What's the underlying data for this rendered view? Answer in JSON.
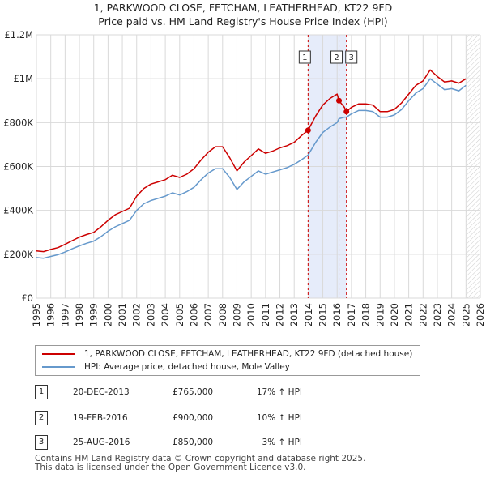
{
  "title": {
    "line1": "1, PARKWOOD CLOSE, FETCHAM, LEATHERHEAD, KT22 9FD",
    "line2": "Price paid vs. HM Land Registry's House Price Index (HPI)"
  },
  "colors": {
    "property": "#cc0000",
    "hpi": "#6699cc",
    "shade": "#e6ecfa",
    "grid": "#d9d9d9",
    "marker_line": "#cc0000"
  },
  "chart_data": {
    "type": "line",
    "title": "1, PARKWOOD CLOSE, FETCHAM, LEATHERHEAD, KT22 9FD",
    "subtitle": "Price paid vs. HM Land Registry's House Price Index (HPI)",
    "xlabel": "",
    "ylabel": "",
    "xlim": [
      1995,
      2026
    ],
    "ylim": [
      0,
      1200000
    ],
    "x_ticks": [
      1995,
      1996,
      1997,
      1998,
      1999,
      2000,
      2001,
      2002,
      2003,
      2004,
      2005,
      2006,
      2007,
      2008,
      2009,
      2010,
      2011,
      2012,
      2013,
      2014,
      2015,
      2016,
      2017,
      2018,
      2019,
      2020,
      2021,
      2022,
      2023,
      2024,
      2025,
      2026
    ],
    "y_ticks": [
      {
        "value": 0,
        "label": "£0"
      },
      {
        "value": 200000,
        "label": "£200K"
      },
      {
        "value": 400000,
        "label": "£400K"
      },
      {
        "value": 600000,
        "label": "£600K"
      },
      {
        "value": 800000,
        "label": "£800K"
      },
      {
        "value": 1000000,
        "label": "£1M"
      },
      {
        "value": 1200000,
        "label": "£1.2M"
      }
    ],
    "grid": true,
    "shaded_range": [
      2013.97,
      2016.65
    ],
    "future_hatch_from": 2025.0,
    "series": [
      {
        "name": "1, PARKWOOD CLOSE, FETCHAM, LEATHERHEAD, KT22 9FD (detached house)",
        "color_key": "property",
        "points": [
          [
            1995.0,
            215000
          ],
          [
            1995.5,
            212000
          ],
          [
            1996.0,
            222000
          ],
          [
            1996.5,
            230000
          ],
          [
            1997.0,
            245000
          ],
          [
            1997.5,
            262000
          ],
          [
            1998.0,
            278000
          ],
          [
            1998.5,
            290000
          ],
          [
            1999.0,
            300000
          ],
          [
            1999.5,
            325000
          ],
          [
            2000.0,
            355000
          ],
          [
            2000.5,
            380000
          ],
          [
            2001.0,
            395000
          ],
          [
            2001.5,
            410000
          ],
          [
            2002.0,
            465000
          ],
          [
            2002.5,
            500000
          ],
          [
            2003.0,
            520000
          ],
          [
            2003.5,
            530000
          ],
          [
            2004.0,
            540000
          ],
          [
            2004.5,
            560000
          ],
          [
            2005.0,
            550000
          ],
          [
            2005.5,
            565000
          ],
          [
            2006.0,
            590000
          ],
          [
            2006.5,
            630000
          ],
          [
            2007.0,
            665000
          ],
          [
            2007.5,
            690000
          ],
          [
            2008.0,
            690000
          ],
          [
            2008.5,
            640000
          ],
          [
            2009.0,
            580000
          ],
          [
            2009.5,
            620000
          ],
          [
            2010.0,
            650000
          ],
          [
            2010.5,
            680000
          ],
          [
            2011.0,
            660000
          ],
          [
            2011.5,
            670000
          ],
          [
            2012.0,
            685000
          ],
          [
            2012.5,
            695000
          ],
          [
            2013.0,
            710000
          ],
          [
            2013.5,
            740000
          ],
          [
            2013.97,
            765000
          ],
          [
            2014.5,
            830000
          ],
          [
            2015.0,
            880000
          ],
          [
            2015.5,
            910000
          ],
          [
            2016.0,
            930000
          ],
          [
            2016.13,
            900000
          ],
          [
            2016.5,
            870000
          ],
          [
            2016.65,
            850000
          ],
          [
            2017.0,
            870000
          ],
          [
            2017.5,
            885000
          ],
          [
            2018.0,
            885000
          ],
          [
            2018.5,
            880000
          ],
          [
            2019.0,
            850000
          ],
          [
            2019.5,
            850000
          ],
          [
            2020.0,
            860000
          ],
          [
            2020.5,
            890000
          ],
          [
            2021.0,
            930000
          ],
          [
            2021.5,
            970000
          ],
          [
            2022.0,
            990000
          ],
          [
            2022.5,
            1040000
          ],
          [
            2023.0,
            1010000
          ],
          [
            2023.5,
            985000
          ],
          [
            2024.0,
            990000
          ],
          [
            2024.5,
            980000
          ],
          [
            2025.0,
            1000000
          ]
        ]
      },
      {
        "name": "HPI: Average price, detached house, Mole Valley",
        "color_key": "hpi",
        "points": [
          [
            1995.0,
            185000
          ],
          [
            1995.5,
            182000
          ],
          [
            1996.0,
            190000
          ],
          [
            1996.5,
            198000
          ],
          [
            1997.0,
            210000
          ],
          [
            1997.5,
            225000
          ],
          [
            1998.0,
            238000
          ],
          [
            1998.5,
            250000
          ],
          [
            1999.0,
            260000
          ],
          [
            1999.5,
            280000
          ],
          [
            2000.0,
            305000
          ],
          [
            2000.5,
            325000
          ],
          [
            2001.0,
            340000
          ],
          [
            2001.5,
            355000
          ],
          [
            2002.0,
            400000
          ],
          [
            2002.5,
            430000
          ],
          [
            2003.0,
            445000
          ],
          [
            2003.5,
            455000
          ],
          [
            2004.0,
            465000
          ],
          [
            2004.5,
            480000
          ],
          [
            2005.0,
            470000
          ],
          [
            2005.5,
            485000
          ],
          [
            2006.0,
            505000
          ],
          [
            2006.5,
            540000
          ],
          [
            2007.0,
            570000
          ],
          [
            2007.5,
            590000
          ],
          [
            2008.0,
            590000
          ],
          [
            2008.5,
            550000
          ],
          [
            2009.0,
            495000
          ],
          [
            2009.5,
            530000
          ],
          [
            2010.0,
            555000
          ],
          [
            2010.5,
            580000
          ],
          [
            2011.0,
            565000
          ],
          [
            2011.5,
            575000
          ],
          [
            2012.0,
            585000
          ],
          [
            2012.5,
            595000
          ],
          [
            2013.0,
            610000
          ],
          [
            2013.5,
            630000
          ],
          [
            2013.97,
            652000
          ],
          [
            2014.5,
            710000
          ],
          [
            2015.0,
            755000
          ],
          [
            2015.5,
            780000
          ],
          [
            2016.0,
            800000
          ],
          [
            2016.13,
            818000
          ],
          [
            2016.5,
            825000
          ],
          [
            2016.65,
            825000
          ],
          [
            2017.0,
            840000
          ],
          [
            2017.5,
            855000
          ],
          [
            2018.0,
            855000
          ],
          [
            2018.5,
            850000
          ],
          [
            2019.0,
            825000
          ],
          [
            2019.5,
            825000
          ],
          [
            2020.0,
            835000
          ],
          [
            2020.5,
            860000
          ],
          [
            2021.0,
            900000
          ],
          [
            2021.5,
            935000
          ],
          [
            2022.0,
            955000
          ],
          [
            2022.5,
            1000000
          ],
          [
            2023.0,
            975000
          ],
          [
            2023.5,
            950000
          ],
          [
            2024.0,
            955000
          ],
          [
            2024.5,
            945000
          ],
          [
            2025.0,
            970000
          ]
        ]
      }
    ],
    "transactions": [
      {
        "num": "1",
        "date": "20-DEC-2013",
        "price": "£765,000",
        "hpi": "17% ↑ HPI",
        "x": 2013.97,
        "y": 765000
      },
      {
        "num": "2",
        "date": "19-FEB-2016",
        "price": "£900,000",
        "hpi": "10% ↑ HPI",
        "x": 2016.13,
        "y": 900000
      },
      {
        "num": "3",
        "date": "25-AUG-2016",
        "price": "£850,000",
        "hpi": "3% ↑ HPI",
        "x": 2016.65,
        "y": 850000
      }
    ],
    "legend": {
      "placement": "below-chart",
      "entries": [
        "1, PARKWOOD CLOSE, FETCHAM, LEATHERHEAD, KT22 9FD (detached house)",
        "HPI: Average price, detached house, Mole Valley"
      ]
    }
  },
  "footer": {
    "line1": "Contains HM Land Registry data © Crown copyright and database right 2025.",
    "line2": "This data is licensed under the Open Government Licence v3.0."
  }
}
